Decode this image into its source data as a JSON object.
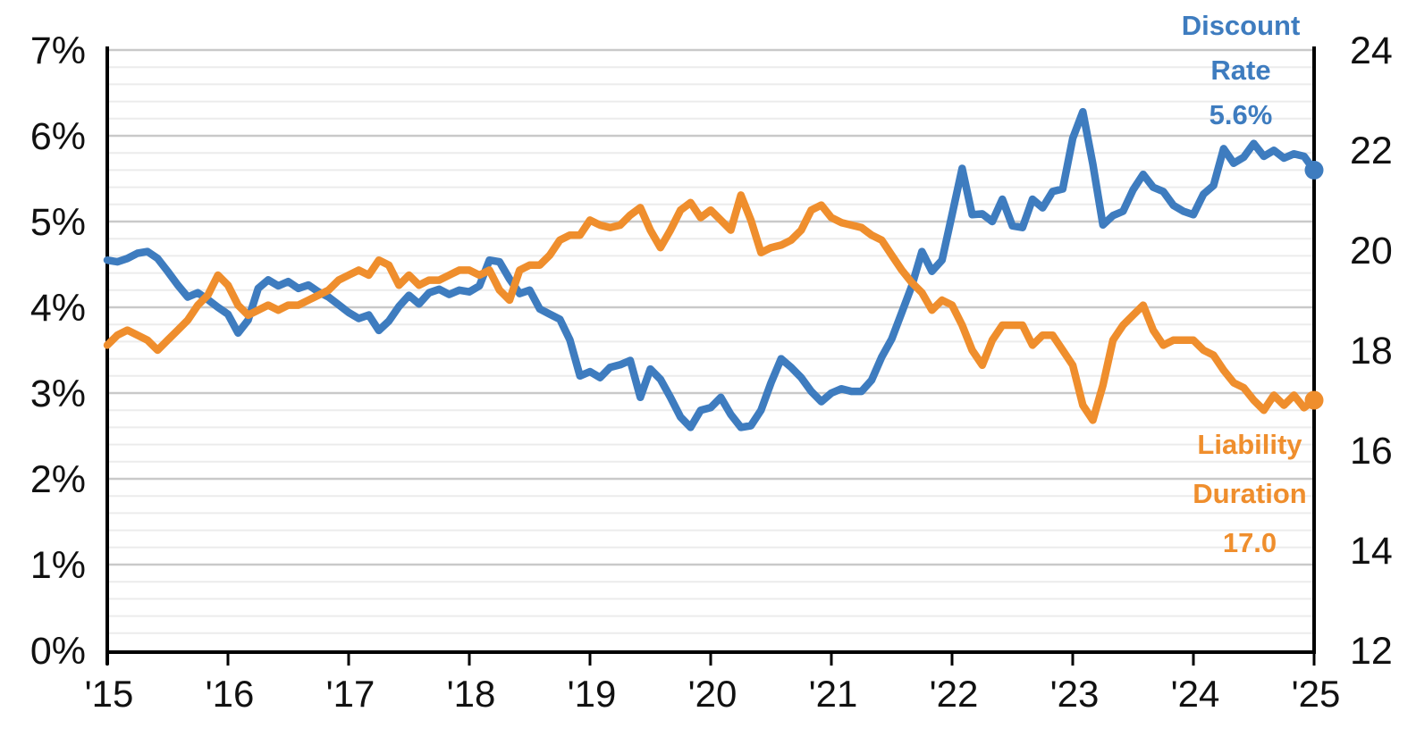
{
  "chart_data": {
    "type": "line",
    "title": "",
    "x_axis": {
      "tick_labels": [
        "'15",
        "'16",
        "'17",
        "'18",
        "'19",
        "'20",
        "'21",
        "'22",
        "'23",
        "'24",
        "'25"
      ],
      "start_month": "2015-01",
      "end_month": "2025-01",
      "interval": "monthly"
    },
    "left_axis": {
      "min": 0,
      "max": 7,
      "major_step": 1,
      "minor_step": 0.2,
      "tick_labels": [
        "0%",
        "1%",
        "2%",
        "3%",
        "4%",
        "5%",
        "6%",
        "7%"
      ]
    },
    "right_axis": {
      "min": 12,
      "max": 24,
      "tick_step": 2,
      "tick_labels": [
        "12",
        "14",
        "16",
        "18",
        "20",
        "22",
        "24"
      ]
    },
    "grid": {
      "major_color": "#c9c9c9",
      "minor_color": "#ececec",
      "axis_color": "#000000"
    },
    "legend_position": "end-of-line annotations",
    "series": [
      {
        "name": "Discount Rate",
        "axis": "left",
        "color": "#3E7CBF",
        "label_lines": [
          "Discount",
          "Rate",
          "5.6%"
        ],
        "final_value_label": "5.6%",
        "values": [
          4.55,
          4.53,
          4.57,
          4.63,
          4.65,
          4.57,
          4.42,
          4.26,
          4.12,
          4.17,
          4.09,
          4.0,
          3.92,
          3.7,
          3.85,
          4.22,
          4.32,
          4.25,
          4.3,
          4.22,
          4.26,
          4.18,
          4.12,
          4.03,
          3.94,
          3.87,
          3.91,
          3.73,
          3.84,
          4.01,
          4.14,
          4.04,
          4.17,
          4.21,
          4.15,
          4.2,
          4.18,
          4.25,
          4.55,
          4.53,
          4.33,
          4.16,
          4.2,
          3.98,
          3.92,
          3.86,
          3.62,
          3.2,
          3.25,
          3.18,
          3.3,
          3.33,
          3.38,
          2.95,
          3.28,
          3.16,
          2.95,
          2.72,
          2.6,
          2.8,
          2.83,
          2.95,
          2.75,
          2.6,
          2.62,
          2.8,
          3.12,
          3.4,
          3.3,
          3.18,
          3.02,
          2.9,
          3.0,
          3.05,
          3.02,
          3.02,
          3.15,
          3.42,
          3.63,
          3.94,
          4.25,
          4.65,
          4.42,
          4.55,
          5.08,
          5.62,
          5.08,
          5.09,
          5.0,
          5.26,
          4.95,
          4.93,
          5.26,
          5.16,
          5.35,
          5.38,
          5.97,
          6.28,
          5.67,
          4.96,
          5.07,
          5.12,
          5.37,
          5.55,
          5.4,
          5.35,
          5.19,
          5.12,
          5.08,
          5.32,
          5.42,
          5.85,
          5.68,
          5.75,
          5.91,
          5.76,
          5.83,
          5.74,
          5.79,
          5.76,
          5.6
        ]
      },
      {
        "name": "Liability Duration",
        "axis": "right",
        "color": "#EF8E2D",
        "label_lines": [
          "Liability",
          "Duration",
          "17.0"
        ],
        "final_value_label": "17.0",
        "values": [
          18.1,
          18.3,
          18.4,
          18.3,
          18.2,
          18.0,
          18.2,
          18.4,
          18.6,
          18.9,
          19.1,
          19.5,
          19.3,
          18.9,
          18.7,
          18.8,
          18.9,
          18.8,
          18.9,
          18.9,
          19.0,
          19.1,
          19.2,
          19.4,
          19.5,
          19.6,
          19.5,
          19.8,
          19.7,
          19.3,
          19.5,
          19.3,
          19.4,
          19.4,
          19.5,
          19.6,
          19.6,
          19.5,
          19.6,
          19.2,
          19.0,
          19.6,
          19.7,
          19.7,
          19.9,
          20.2,
          20.3,
          20.3,
          20.6,
          20.5,
          20.45,
          20.5,
          20.7,
          20.85,
          20.4,
          20.05,
          20.4,
          20.8,
          20.95,
          20.65,
          20.8,
          20.6,
          20.4,
          21.1,
          20.6,
          19.95,
          20.05,
          20.1,
          20.2,
          20.4,
          20.8,
          20.9,
          20.65,
          20.55,
          20.5,
          20.45,
          20.3,
          20.2,
          19.9,
          19.6,
          19.35,
          19.15,
          18.8,
          19.0,
          18.9,
          18.5,
          18.0,
          17.7,
          18.2,
          18.5,
          18.5,
          18.5,
          18.1,
          18.3,
          18.3,
          18.0,
          17.7,
          16.9,
          16.6,
          17.3,
          18.2,
          18.5,
          18.7,
          18.9,
          18.4,
          18.1,
          18.2,
          18.2,
          18.2,
          18.0,
          17.9,
          17.6,
          17.35,
          17.25,
          17.0,
          16.8,
          17.1,
          16.9,
          17.1,
          16.85,
          17.0
        ]
      }
    ]
  }
}
